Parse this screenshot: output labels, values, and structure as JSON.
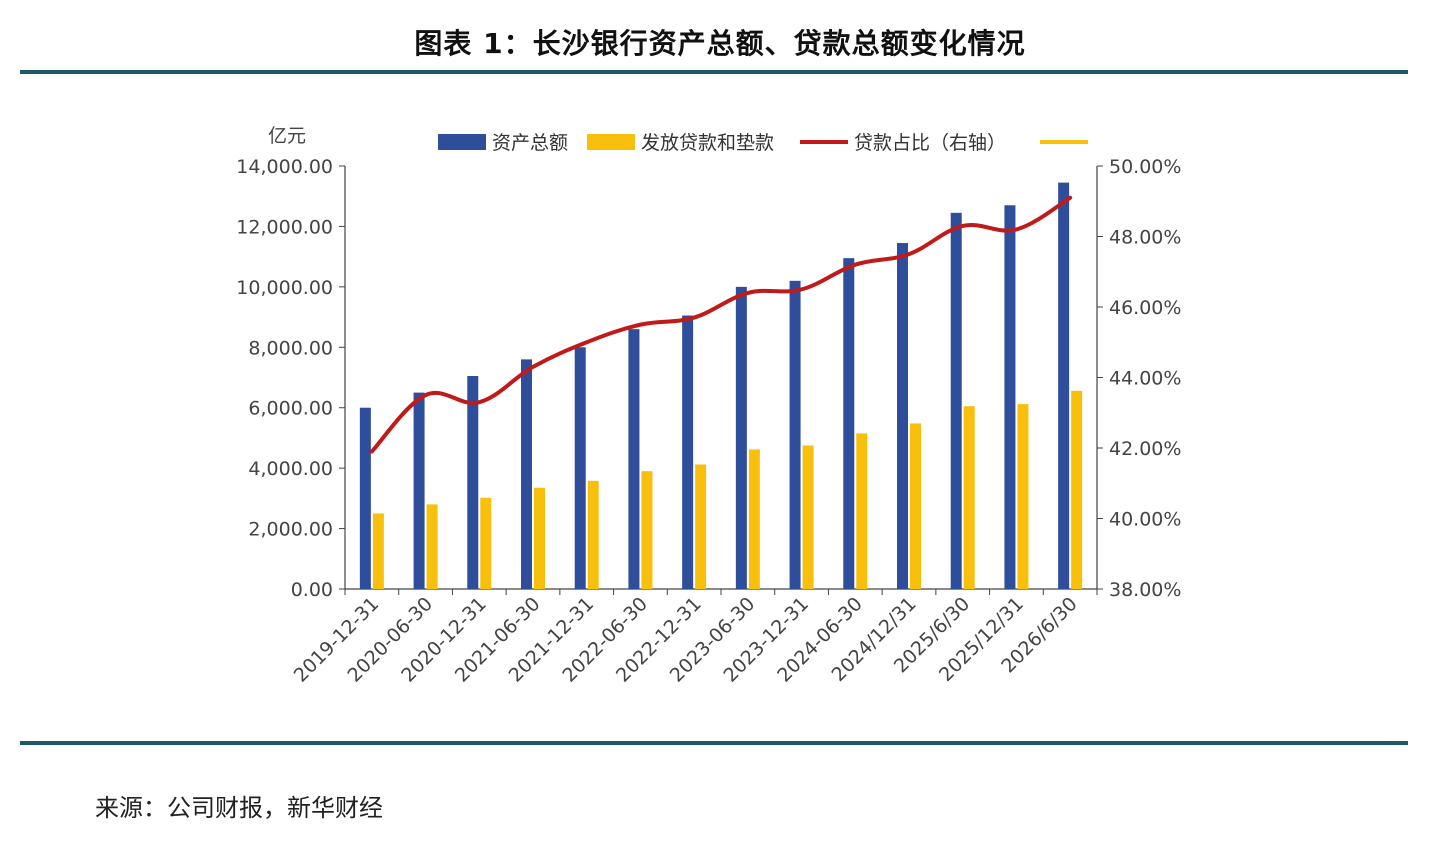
{
  "page": {
    "title": "图表 1：长沙银行资产总额、贷款总额变化情况",
    "source": "来源：公司财报，新华财经"
  },
  "chart_data": {
    "type": "bar",
    "title": "",
    "ylabel": "亿元",
    "ylim": [
      0,
      14000
    ],
    "y_ticks": [
      "0.00",
      "2,000.00",
      "4,000.00",
      "6,000.00",
      "8,000.00",
      "10,000.00",
      "12,000.00",
      "14,000.00"
    ],
    "y2lim": [
      38,
      50
    ],
    "y2_ticks": [
      "38.00%",
      "40.00%",
      "42.00%",
      "44.00%",
      "46.00%",
      "48.00%",
      "50.00%"
    ],
    "categories": [
      "2019-12-31",
      "2020-06-30",
      "2020-12-31",
      "2021-06-30",
      "2021-12-31",
      "2022-06-30",
      "2022-12-31",
      "2023-06-30",
      "2023-12-31",
      "2024-06-30",
      "2024/12/31",
      "2025/6/30",
      "2025/12/31",
      "2026/6/30"
    ],
    "series": [
      {
        "name": "资产总额",
        "kind": "bar",
        "axis": "left",
        "color": "#2e4d9a",
        "values": [
          6000,
          6500,
          7050,
          7600,
          8000,
          8600,
          9050,
          10000,
          10200,
          10950,
          11450,
          12450,
          12700,
          13450
        ]
      },
      {
        "name": "发放贷款和垫款",
        "kind": "bar",
        "axis": "left",
        "color": "#f8c00c",
        "values": [
          2500,
          2800,
          3020,
          3350,
          3580,
          3900,
          4120,
          4620,
          4750,
          5150,
          5480,
          6050,
          6120,
          6560
        ]
      },
      {
        "name": "贷款占比（右轴）",
        "kind": "line",
        "axis": "right",
        "color": "#c01a1a",
        "values": [
          41.9,
          43.5,
          43.3,
          44.3,
          45.0,
          45.5,
          45.7,
          46.4,
          46.5,
          47.2,
          47.5,
          48.3,
          48.2,
          49.1
        ]
      }
    ],
    "extra_legend": {
      "name": "",
      "color": "#f8c00c"
    },
    "legend_position": "top",
    "grid": false
  }
}
